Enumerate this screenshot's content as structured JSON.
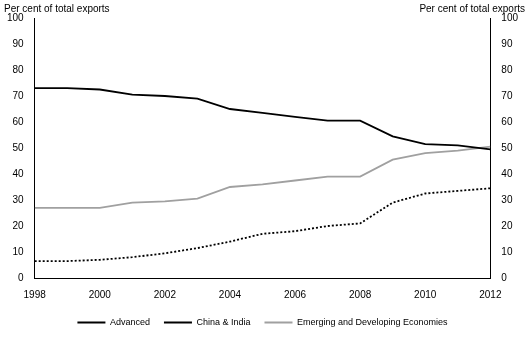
{
  "chart_data": {
    "type": "line",
    "ylabel": "Per cent of total exports",
    "y2label": "Per cent of total exports",
    "x": [
      1998,
      1999,
      2000,
      2001,
      2002,
      2003,
      2004,
      2005,
      2006,
      2007,
      2008,
      2009,
      2010,
      2011,
      2012
    ],
    "series": [
      {
        "name": "Advanced",
        "color": "#000000",
        "line_style": "solid",
        "values": [
          73,
          73,
          72.5,
          70.5,
          70,
          69,
          65,
          63.5,
          62,
          60.5,
          60.5,
          54.5,
          51.5,
          51,
          49.5
        ]
      },
      {
        "name": "China & India",
        "color": "#000000",
        "line_style": "dotted",
        "values": [
          6.5,
          6.5,
          7,
          8,
          9.5,
          11.5,
          14,
          17,
          18,
          20,
          21,
          29,
          32.5,
          33.5,
          34.5
        ]
      },
      {
        "name": "Emerging and Developing Economies",
        "color": "#a0a0a0",
        "line_style": "solid",
        "values": [
          27,
          27,
          27,
          29,
          29.5,
          30.5,
          35,
          36,
          37.5,
          39,
          39,
          45.5,
          48,
          49,
          50.5
        ]
      }
    ],
    "xlim": [
      1998,
      2012
    ],
    "xticks": [
      1998,
      2000,
      2002,
      2004,
      2006,
      2008,
      2010,
      2012
    ],
    "ylim": [
      0,
      100
    ],
    "yticks": [
      0,
      10,
      20,
      30,
      40,
      50,
      60,
      70,
      80,
      90,
      100
    ],
    "y2lim": [
      0,
      100
    ],
    "y2ticks": [
      0,
      10,
      20,
      30,
      40,
      50,
      60,
      70,
      80,
      90,
      100
    ],
    "grid": false,
    "legend": "bottom"
  }
}
